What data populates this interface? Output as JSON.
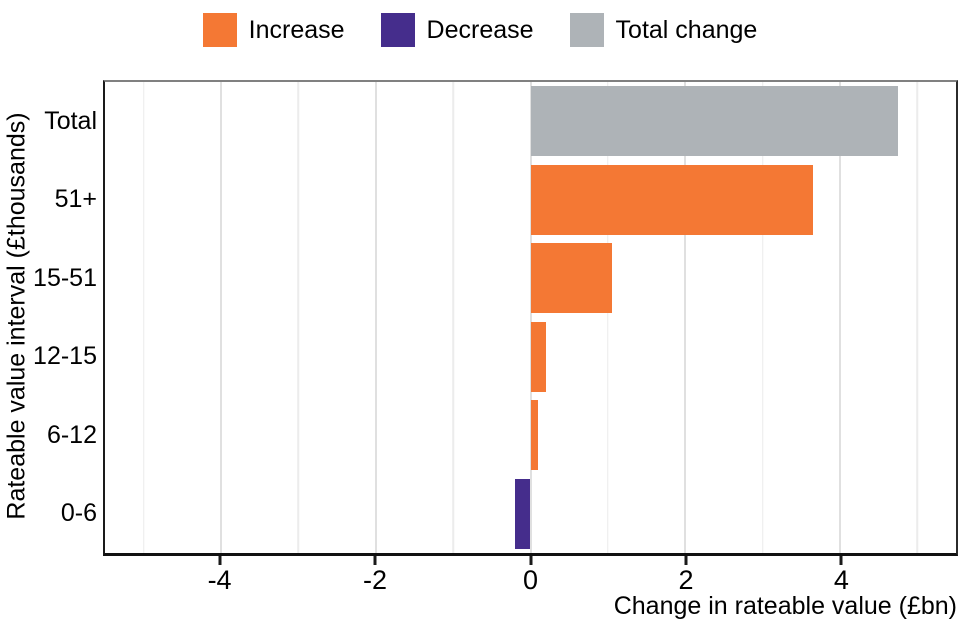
{
  "legend": {
    "items": [
      {
        "label": "Increase",
        "color": "#F47834"
      },
      {
        "label": "Decrease",
        "color": "#452D8C"
      },
      {
        "label": "Total change",
        "color": "#AEB3B7"
      }
    ]
  },
  "chart_data": {
    "type": "bar",
    "orientation": "horizontal",
    "title": "",
    "categories": [
      "Total",
      "51+",
      "15-51",
      "12-15",
      "6-12",
      "0-6"
    ],
    "values": [
      4.75,
      3.65,
      1.05,
      0.2,
      0.1,
      -0.2
    ],
    "bar_series": [
      "Total change",
      "Increase",
      "Increase",
      "Increase",
      "Increase",
      "Decrease"
    ],
    "series": [
      {
        "name": "Increase",
        "color": "#F47834"
      },
      {
        "name": "Decrease",
        "color": "#452D8C"
      },
      {
        "name": "Total change",
        "color": "#AEB3B7"
      }
    ],
    "colors": {
      "Increase": "#F47834",
      "Decrease": "#452D8C",
      "Total change": "#AEB3B7"
    },
    "xlabel": "Change in rateable value (£bn)",
    "ylabel": "Rateable value interval (£thousands)",
    "xlim": [
      -5.5,
      5.5
    ],
    "x_ticks": [
      -4,
      -2,
      0,
      2,
      4
    ],
    "x_tick_labels": [
      "-4",
      "-2",
      "0",
      "2",
      "4"
    ],
    "x_minor_gridlines": [
      -5,
      -3,
      -1,
      1,
      3,
      5
    ],
    "grid": "vertical-only",
    "legend_position": "top-center"
  }
}
